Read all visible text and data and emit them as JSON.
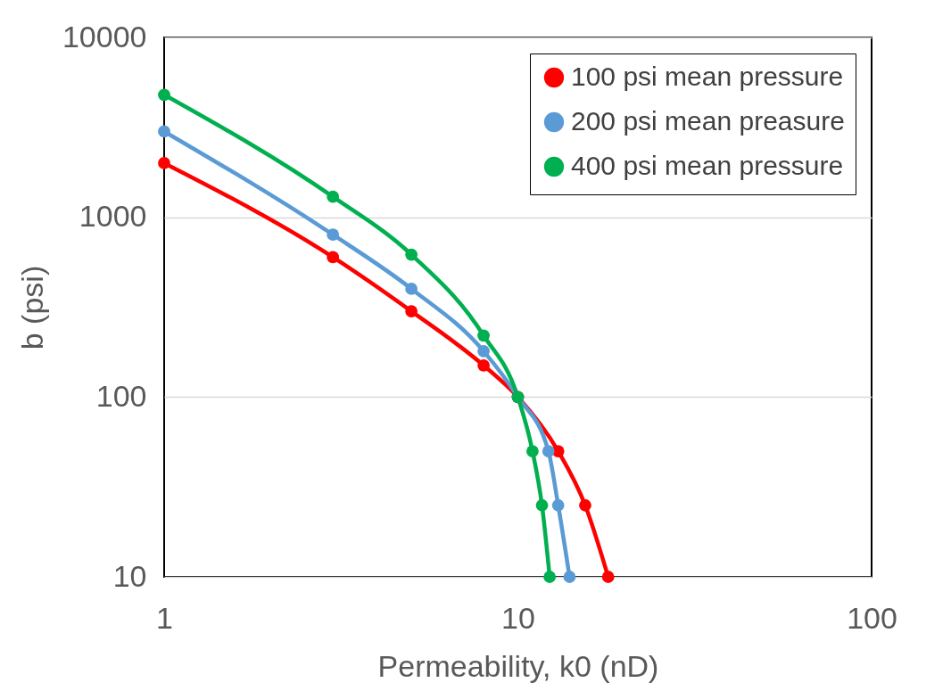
{
  "chart_data": {
    "type": "line",
    "xlabel": "Permeability, k0 (nD)",
    "ylabel": "b (psi)",
    "log": "xy",
    "xlim": [
      1,
      100
    ],
    "xticks": [
      1,
      10,
      100
    ],
    "ylim": [
      10,
      10000
    ],
    "yticks": [
      10,
      100,
      1000,
      10000
    ],
    "grid": "y",
    "legend": "top right",
    "marker": "circle",
    "line_style": "solid",
    "series": [
      {
        "name": "100 psi mean pressure",
        "color": "#ff0000",
        "x": [
          1,
          3,
          5,
          8,
          10,
          13,
          15.5,
          18
        ],
        "values": [
          2000,
          600,
          300,
          150,
          100,
          50,
          25,
          10
        ]
      },
      {
        "name": "200 psi mean preasure",
        "color": "#5b9bd5",
        "x": [
          1,
          3,
          5,
          8,
          10,
          12.2,
          13,
          14
        ],
        "values": [
          3000,
          800,
          400,
          180,
          100,
          50,
          25,
          10
        ]
      },
      {
        "name": "400 psi mean pressure",
        "color": "#00b050",
        "x": [
          1,
          3,
          5,
          8,
          10,
          11,
          11.7,
          12.3
        ],
        "values": [
          4800,
          1300,
          620,
          220,
          100,
          50,
          25,
          10
        ]
      }
    ]
  }
}
